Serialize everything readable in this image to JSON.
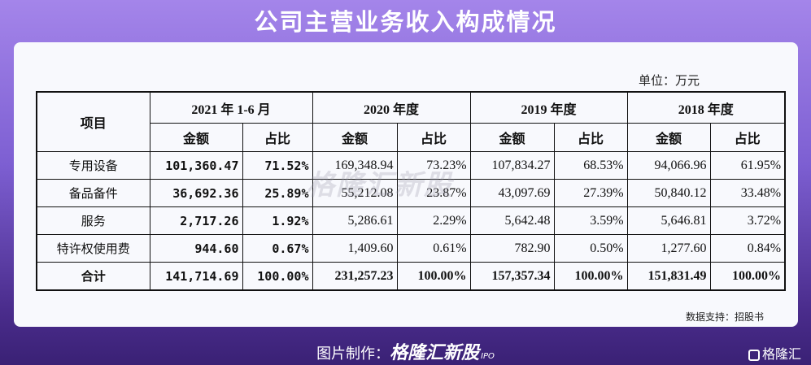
{
  "title": "公司主营业务收入构成情况",
  "unit": "单位：万元",
  "watermark": "格隆汇新股",
  "table": {
    "header": [
      "项目",
      "2021 年 1-6 月",
      "2020 年度",
      "2019 年度",
      "2018 年度"
    ],
    "subheader": [
      "金额",
      "占比",
      "金额",
      "占比",
      "金额",
      "占比",
      "金额",
      "占比"
    ],
    "rows": [
      [
        "专用设备",
        "101,360.47",
        "71.52%",
        "169,348.94",
        "73.23%",
        "107,834.27",
        "68.53%",
        "94,066.96",
        "61.95%"
      ],
      [
        "备品备件",
        "36,692.36",
        "25.89%",
        "55,212.08",
        "23.87%",
        "43,097.69",
        "27.39%",
        "50,840.12",
        "33.48%"
      ],
      [
        "服务",
        "2,717.26",
        "1.92%",
        "5,286.61",
        "2.29%",
        "5,642.48",
        "3.59%",
        "5,646.81",
        "3.72%"
      ],
      [
        "特许权使用费",
        "944.60",
        "0.67%",
        "1,409.60",
        "0.61%",
        "782.90",
        "0.50%",
        "1,277.60",
        "0.84%"
      ],
      [
        "合计",
        "141,714.69",
        "100.00%",
        "231,257.23",
        "100.00%",
        "157,357.34",
        "100.00%",
        "151,831.49",
        "100.00%"
      ]
    ]
  },
  "source": "数据支持：招股书",
  "footer": {
    "label": "图片制作：",
    "brand": "格隆汇新股",
    "tag": "IPO"
  },
  "logo": "格隆汇"
}
